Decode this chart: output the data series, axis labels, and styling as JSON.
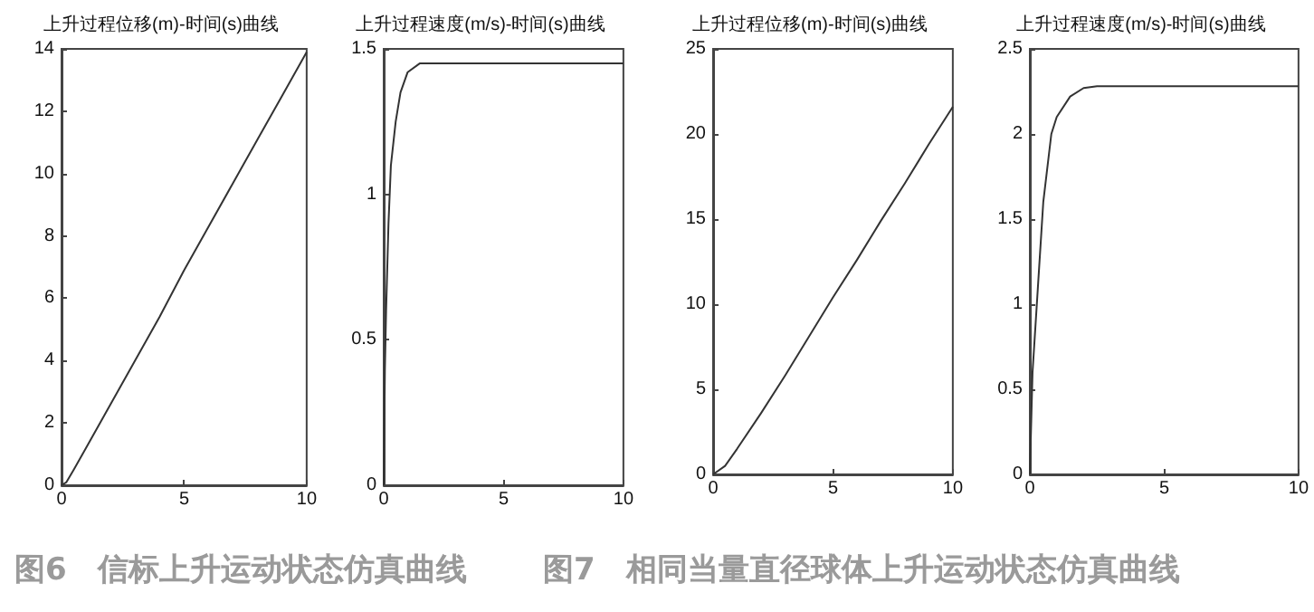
{
  "chart_data": [
    {
      "type": "line",
      "title": "上升过程位移(m)-时间(s)曲线",
      "annotations": [
        "图6　信标上升运动状态仿真曲线"
      ],
      "series": [
        {
          "color": "#333333",
          "x": [
            0,
            0.2,
            0.5,
            1,
            2,
            3,
            4,
            5,
            6,
            7,
            8,
            9,
            10
          ],
          "values": [
            0,
            0.1,
            0.5,
            1.2,
            2.6,
            4,
            5.4,
            6.9,
            8.3,
            9.7,
            11.1,
            12.5,
            13.9
          ]
        }
      ],
      "xlim": [
        0,
        10
      ],
      "xticks": [
        0,
        5,
        10
      ],
      "ylim": [
        0,
        14
      ],
      "yticks": [
        0,
        2,
        4,
        6,
        8,
        10,
        12,
        14
      ],
      "grid": false,
      "marker": "none",
      "line_style": "solid"
    },
    {
      "type": "line",
      "title": "上升过程速度(m/s)-时间(s)曲线",
      "series": [
        {
          "color": "#333333",
          "x": [
            0,
            0.05,
            0.1,
            0.2,
            0.3,
            0.5,
            0.7,
            1,
            1.5,
            10
          ],
          "values": [
            0,
            0.4,
            0.6,
            0.9,
            1.1,
            1.25,
            1.35,
            1.42,
            1.45,
            1.45
          ]
        }
      ],
      "xlim": [
        0,
        10
      ],
      "xticks": [
        0,
        5,
        10
      ],
      "ylim": [
        0,
        1.5
      ],
      "yticks": [
        0,
        0.5,
        1,
        1.5
      ],
      "grid": false,
      "marker": "none",
      "line_style": "solid"
    },
    {
      "type": "line",
      "title": "上升过程位移(m)-时间(s)曲线",
      "annotations": [
        "图7　相同当量直径球体上升运动状态仿真曲线"
      ],
      "series": [
        {
          "color": "#333333",
          "x": [
            0,
            0.5,
            1,
            2,
            3,
            4,
            5,
            6,
            7,
            8,
            9,
            10
          ],
          "values": [
            0,
            0.5,
            1.5,
            3.6,
            5.8,
            8.1,
            10.4,
            12.6,
            14.9,
            17.1,
            19.4,
            21.6
          ]
        }
      ],
      "xlim": [
        0,
        10
      ],
      "xticks": [
        0,
        5,
        10
      ],
      "ylim": [
        0,
        25
      ],
      "yticks": [
        0,
        5,
        10,
        15,
        20,
        25
      ],
      "grid": false,
      "marker": "none",
      "line_style": "solid"
    },
    {
      "type": "line",
      "title": "上升过程速度(m/s)-时间(s)曲线",
      "series": [
        {
          "color": "#333333",
          "x": [
            0,
            0.1,
            0.3,
            0.5,
            0.8,
            1,
            1.5,
            2,
            2.5,
            10
          ],
          "values": [
            0,
            0.6,
            1.1,
            1.6,
            2,
            2.1,
            2.22,
            2.27,
            2.28,
            2.28
          ]
        }
      ],
      "xlim": [
        0,
        10
      ],
      "xticks": [
        0,
        5,
        10
      ],
      "ylim": [
        0,
        2.5
      ],
      "yticks": [
        0,
        0.5,
        1,
        1.5,
        2,
        2.5
      ],
      "grid": false,
      "marker": "none",
      "line_style": "solid"
    }
  ]
}
